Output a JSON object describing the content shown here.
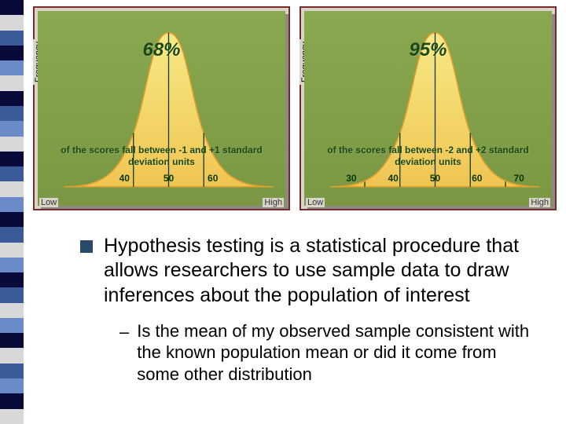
{
  "sidebar_colors": [
    "#0a0a3a",
    "#d8d8d8",
    "#3a5a9a",
    "#0a0a3a",
    "#6a8ac8",
    "#d8d8d8",
    "#0a0a3a",
    "#3a5a9a",
    "#6a8ac8",
    "#d8d8d8",
    "#0a0a3a",
    "#3a5a9a",
    "#d8d8d8",
    "#6a8ac8",
    "#0a0a3a",
    "#3a5a9a",
    "#d8d8d8",
    "#6a8ac8",
    "#0a0a3a",
    "#3a5a9a",
    "#d8d8d8",
    "#6a8ac8",
    "#0a0a3a",
    "#d8d8d8",
    "#3a5a9a",
    "#6a8ac8",
    "#0a0a3a",
    "#d8d8d8"
  ],
  "charts": {
    "left": {
      "type": "bell-curve",
      "percent_label": "68%",
      "caption": "of the scores fall between -1 and +1 standard deviation units",
      "ylabel": "Frequency",
      "axis_low": "Low",
      "axis_high": "High",
      "ticks": [
        "40",
        "50",
        "60"
      ],
      "vlines_sd": [
        -1,
        0,
        1
      ],
      "curve_fill_start": "#f7e985",
      "curve_fill_end": "#f0c552",
      "curve_stroke": "#e0a030",
      "background_top": "#8aa84f",
      "background_bottom": "#7a9843",
      "text_color": "#1a4a1a",
      "frame_color": "#7a2a2a",
      "panel_bg": "#d8d4c8"
    },
    "right": {
      "type": "bell-curve",
      "percent_label": "95%",
      "caption": "of the scores fall between -2 and +2 standard deviation units",
      "ylabel": "Frequency",
      "axis_low": "Low",
      "axis_high": "High",
      "ticks": [
        "30",
        "40",
        "50",
        "60",
        "70"
      ],
      "vlines_sd": [
        -2,
        -1,
        0,
        1,
        2
      ],
      "curve_fill_start": "#f7e985",
      "curve_fill_end": "#f0c552",
      "curve_stroke": "#e0a030",
      "background_top": "#8aa84f",
      "background_bottom": "#7a9843",
      "text_color": "#1a4a1a",
      "frame_color": "#7a2a2a",
      "panel_bg": "#d8d4c8"
    }
  },
  "bullet": {
    "text": "Hypothesis testing is a statistical procedure that allows researchers to use sample data to draw inferences about the population of interest",
    "marker_color": "#2a4a6a",
    "fontsize": 25
  },
  "subbullet": {
    "text": "Is the mean of my observed sample consistent with the known population mean or did it come from some other distribution",
    "marker": "–",
    "fontsize": 22
  }
}
